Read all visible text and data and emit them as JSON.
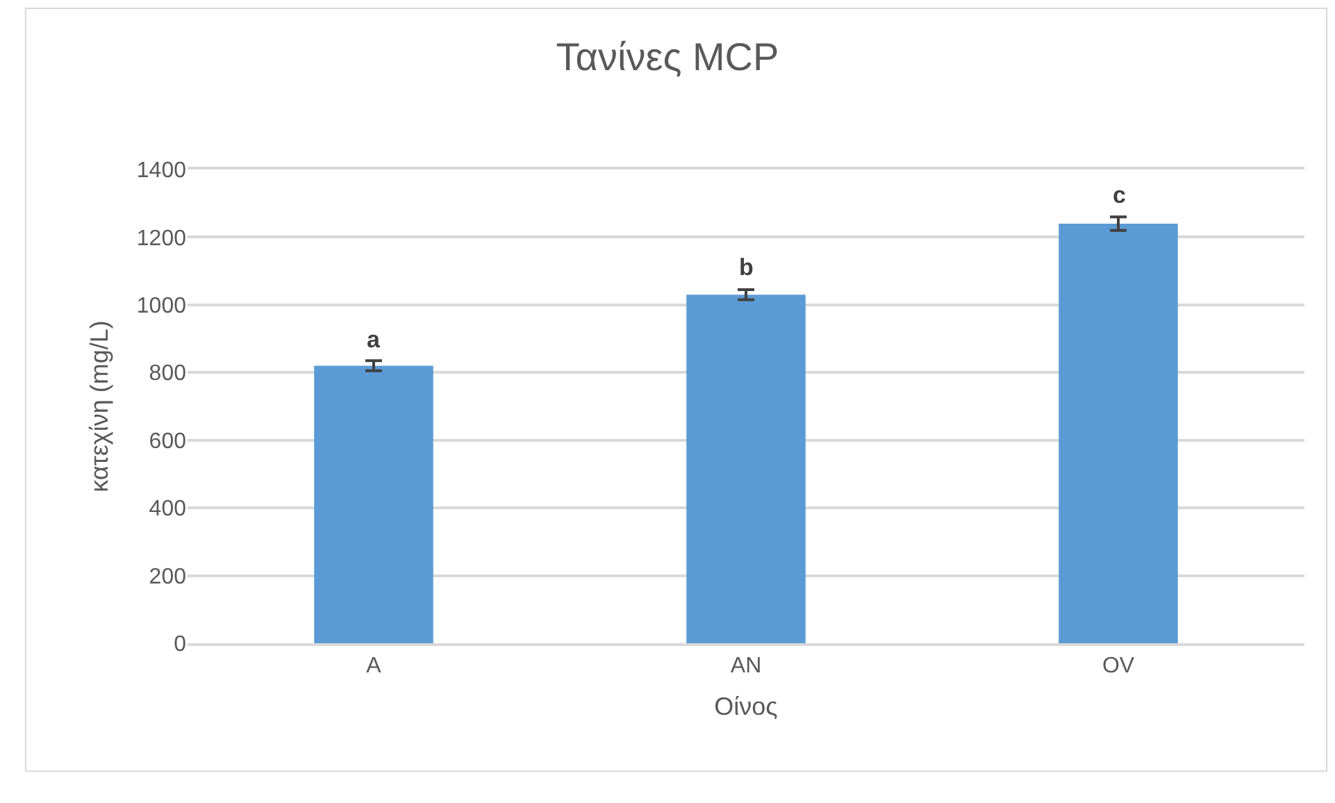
{
  "chart_data": {
    "type": "bar",
    "title": "Τανίνες MCP",
    "xlabel": "Οίνος",
    "ylabel": "κατεχίνη (mg/L)",
    "categories": [
      "A",
      "AN",
      "OV"
    ],
    "values": [
      820,
      1030,
      1240
    ],
    "errors": [
      15,
      15,
      20
    ],
    "color": "#5b9bd5",
    "ylim": [
      0,
      1400
    ],
    "yticks": [
      0,
      200,
      400,
      600,
      800,
      1000,
      1200,
      1400
    ],
    "grid": "y",
    "annotations": [
      {
        "text": "a",
        "x": "A",
        "y": 835
      },
      {
        "text": "b",
        "x": "AN",
        "y": 1045
      },
      {
        "text": "c",
        "x": "OV",
        "y": 1260
      }
    ]
  }
}
